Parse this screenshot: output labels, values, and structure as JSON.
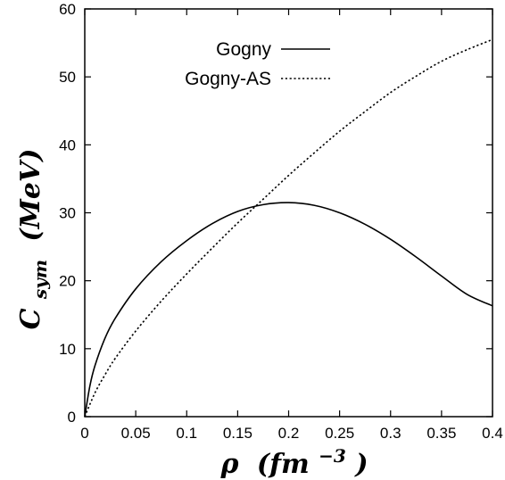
{
  "chart_data": {
    "type": "line",
    "xlabel": {
      "main": "ρ",
      "unit": "(fm",
      "exponent": "−3",
      "close": ")"
    },
    "ylabel": {
      "main": "C",
      "subscript": "sym",
      "unit": "(MeV)"
    },
    "xlim": [
      0,
      0.4
    ],
    "ylim": [
      0,
      60
    ],
    "xticks": [
      {
        "value": 0,
        "label": "0"
      },
      {
        "value": 0.05,
        "label": "0.05"
      },
      {
        "value": 0.1,
        "label": "0.1"
      },
      {
        "value": 0.15,
        "label": "0.15"
      },
      {
        "value": 0.2,
        "label": "0.2"
      },
      {
        "value": 0.25,
        "label": "0.25"
      },
      {
        "value": 0.3,
        "label": "0.3"
      },
      {
        "value": 0.35,
        "label": "0.35"
      },
      {
        "value": 0.4,
        "label": "0.4"
      }
    ],
    "yticks": [
      {
        "value": 0,
        "label": "0"
      },
      {
        "value": 10,
        "label": "10"
      },
      {
        "value": 20,
        "label": "20"
      },
      {
        "value": 30,
        "label": "30"
      },
      {
        "value": 40,
        "label": "40"
      },
      {
        "value": 50,
        "label": "50"
      },
      {
        "value": 60,
        "label": "60"
      }
    ],
    "grid": false,
    "legend_position": "top-center",
    "series": [
      {
        "name": "Gogny",
        "style": "solid",
        "x": [
          0,
          0.005,
          0.01,
          0.02,
          0.03,
          0.05,
          0.075,
          0.1,
          0.125,
          0.15,
          0.175,
          0.2,
          0.225,
          0.25,
          0.275,
          0.3,
          0.325,
          0.35,
          0.375,
          0.4
        ],
        "y": [
          0,
          4.5,
          7.5,
          11.6,
          14.5,
          18.8,
          22.8,
          25.9,
          28.4,
          30.2,
          31.2,
          31.5,
          31.1,
          30.0,
          28.3,
          26.1,
          23.5,
          20.7,
          18.0,
          16.3
        ]
      },
      {
        "name": "Gogny-AS",
        "style": "dotted",
        "x": [
          0,
          0.01,
          0.02,
          0.03,
          0.05,
          0.075,
          0.1,
          0.125,
          0.15,
          0.175,
          0.2,
          0.225,
          0.25,
          0.275,
          0.3,
          0.325,
          0.35,
          0.375,
          0.4
        ],
        "y": [
          0,
          3.5,
          6.2,
          8.6,
          12.6,
          17.0,
          21.0,
          24.8,
          28.5,
          32.0,
          35.5,
          38.8,
          42.0,
          44.9,
          47.7,
          50.1,
          52.3,
          54.0,
          55.5
        ]
      }
    ]
  }
}
